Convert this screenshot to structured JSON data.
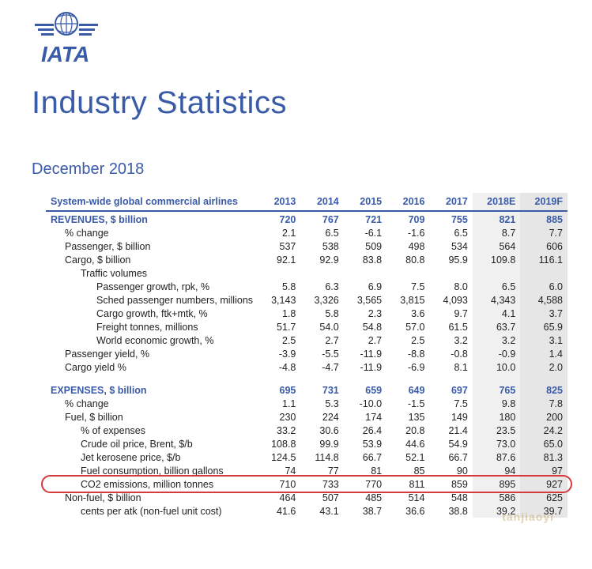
{
  "logo": {
    "label": "IATA",
    "color": "#3a5ba8"
  },
  "title": "Industry Statistics",
  "subtitle": "December 2018",
  "colors": {
    "heading": "#3a5ba8",
    "text": "#222222",
    "shade_2018": "#f0f0f0",
    "shade_2019": "#e6e6e6",
    "highlight_border": "#d73a3a",
    "background": "#ffffff"
  },
  "table": {
    "header_label": "System-wide global commercial airlines",
    "year_cols": [
      "2013",
      "2014",
      "2015",
      "2016",
      "2017",
      "2018E",
      "2019F"
    ],
    "sections": [
      {
        "head": {
          "label": "REVENUES, $ billion",
          "values": [
            "720",
            "767",
            "721",
            "709",
            "755",
            "821",
            "885"
          ]
        },
        "rows": [
          {
            "indent": 1,
            "label": "% change",
            "values": [
              "2.1",
              "6.5",
              "-6.1",
              "-1.6",
              "6.5",
              "8.7",
              "7.7"
            ]
          },
          {
            "indent": 1,
            "label": "Passenger, $ billion",
            "values": [
              "537",
              "538",
              "509",
              "498",
              "534",
              "564",
              "606"
            ]
          },
          {
            "indent": 1,
            "label": "Cargo, $ billion",
            "values": [
              "92.1",
              "92.9",
              "83.8",
              "80.8",
              "95.9",
              "109.8",
              "116.1"
            ]
          },
          {
            "indent": 2,
            "label": "Traffic volumes",
            "values": [
              "",
              "",
              "",
              "",
              "",
              "",
              ""
            ]
          },
          {
            "indent": 3,
            "label": "Passenger growth, rpk, %",
            "values": [
              "5.8",
              "6.3",
              "6.9",
              "7.5",
              "8.0",
              "6.5",
              "6.0"
            ]
          },
          {
            "indent": 3,
            "label": "Sched passenger numbers, millions",
            "values": [
              "3,143",
              "3,326",
              "3,565",
              "3,815",
              "4,093",
              "4,343",
              "4,588"
            ]
          },
          {
            "indent": 3,
            "label": "Cargo growth, ftk+mtk, %",
            "values": [
              "1.8",
              "5.8",
              "2.3",
              "3.6",
              "9.7",
              "4.1",
              "3.7"
            ]
          },
          {
            "indent": 3,
            "label": "Freight tonnes, millions",
            "values": [
              "51.7",
              "54.0",
              "54.8",
              "57.0",
              "61.5",
              "63.7",
              "65.9"
            ]
          },
          {
            "indent": 3,
            "label": "World economic growth, %",
            "values": [
              "2.5",
              "2.7",
              "2.7",
              "2.5",
              "3.2",
              "3.2",
              "3.1"
            ]
          },
          {
            "indent": 1,
            "label": "Passenger yield, %",
            "values": [
              "-3.9",
              "-5.5",
              "-11.9",
              "-8.8",
              "-0.8",
              "-0.9",
              "1.4"
            ]
          },
          {
            "indent": 1,
            "label": "Cargo yield %",
            "values": [
              "-4.8",
              "-4.7",
              "-11.9",
              "-6.9",
              "8.1",
              "10.0",
              "2.0"
            ]
          }
        ]
      },
      {
        "head": {
          "label": "EXPENSES, $ billion",
          "values": [
            "695",
            "731",
            "659",
            "649",
            "697",
            "765",
            "825"
          ]
        },
        "rows": [
          {
            "indent": 1,
            "label": "% change",
            "values": [
              "1.1",
              "5.3",
              "-10.0",
              "-1.5",
              "7.5",
              "9.8",
              "7.8"
            ]
          },
          {
            "indent": 1,
            "label": "Fuel, $ billion",
            "values": [
              "230",
              "224",
              "174",
              "135",
              "149",
              "180",
              "200"
            ]
          },
          {
            "indent": 2,
            "label": "% of expenses",
            "values": [
              "33.2",
              "30.6",
              "26.4",
              "20.8",
              "21.4",
              "23.5",
              "24.2"
            ]
          },
          {
            "indent": 2,
            "label": "Crude oil price, Brent, $/b",
            "values": [
              "108.8",
              "99.9",
              "53.9",
              "44.6",
              "54.9",
              "73.0",
              "65.0"
            ]
          },
          {
            "indent": 2,
            "label": "Jet kerosene price, $/b",
            "values": [
              "124.5",
              "114.8",
              "66.7",
              "52.1",
              "66.7",
              "87.6",
              "81.3"
            ]
          },
          {
            "indent": 2,
            "label": "Fuel consumption, billion gallons",
            "values": [
              "74",
              "77",
              "81",
              "85",
              "90",
              "94",
              "97"
            ]
          },
          {
            "indent": 2,
            "label": "CO2 emissions, million tonnes",
            "values": [
              "710",
              "733",
              "770",
              "811",
              "859",
              "895",
              "927"
            ],
            "highlight": true
          },
          {
            "indent": 1,
            "label": "Non-fuel, $ billion",
            "values": [
              "464",
              "507",
              "485",
              "514",
              "548",
              "586",
              "625"
            ]
          },
          {
            "indent": 2,
            "label": "cents per atk (non-fuel unit cost)",
            "values": [
              "41.6",
              "43.1",
              "38.7",
              "36.6",
              "38.8",
              "39.2",
              "39.7"
            ]
          }
        ]
      }
    ]
  },
  "watermark": "tanjiaoyi"
}
